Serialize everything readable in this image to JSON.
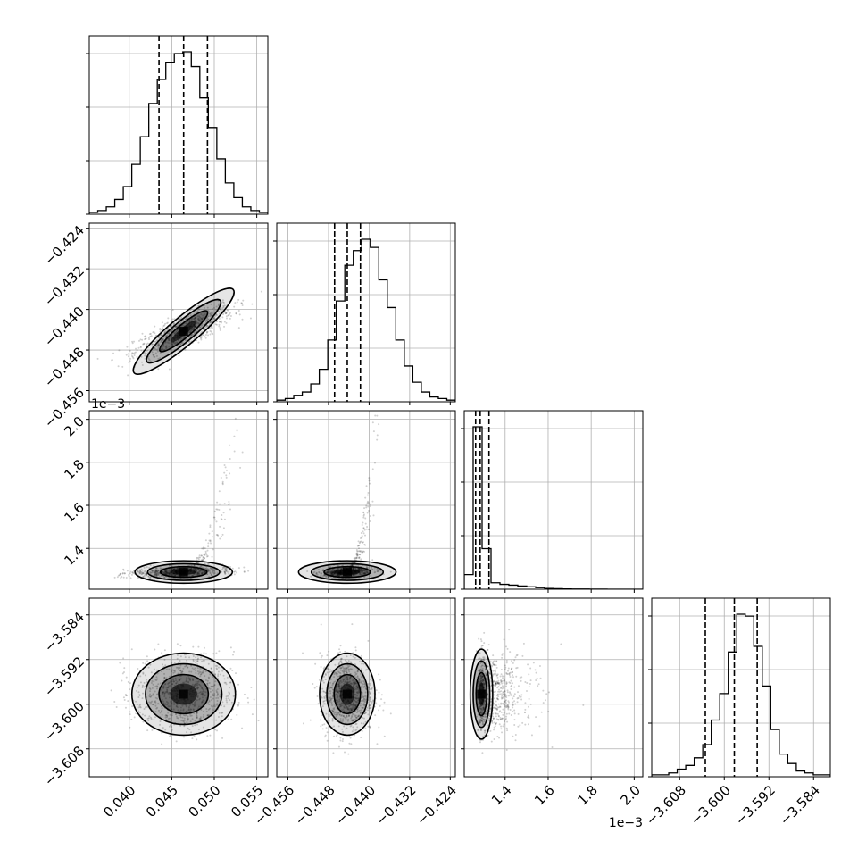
{
  "chart_data": {
    "type": "corner",
    "parameters": 4,
    "colors": {
      "axes": "#000000",
      "grid": "#b0b0b0",
      "points": "#000000",
      "density": "#000000",
      "background": "#ffffff"
    },
    "grid": true,
    "diagonal_style": "step-histogram with dashed quantile lines",
    "quantiles": [
      0.16,
      0.5,
      0.84
    ],
    "x_ticks": [
      [
        "0.040",
        "0.045",
        "0.050",
        "0.055"
      ],
      [
        "−0.456",
        "−0.448",
        "−0.440",
        "−0.432",
        "−0.424"
      ],
      [
        "1.4",
        "1.6",
        "1.8",
        "2.0"
      ],
      [
        "−3.608",
        "−3.600",
        "−3.592",
        "−3.584"
      ]
    ],
    "y_ticks": [
      [],
      [
        "−0.424",
        "−0.432",
        "−0.440",
        "−0.448",
        "−0.456"
      ],
      [
        "2.0",
        "1.8",
        "1.6",
        "1.4"
      ],
      [
        "−3.584",
        "−3.592",
        "−3.600",
        "−3.608"
      ]
    ],
    "x_tick_values": [
      [
        0.04,
        0.045,
        0.05,
        0.055
      ],
      [
        -0.456,
        -0.448,
        -0.44,
        -0.432,
        -0.424
      ],
      [
        1.4,
        1.6,
        1.8,
        2.0
      ],
      [
        -3.608,
        -3.6,
        -3.592,
        -3.584
      ]
    ],
    "y_tick_values": [
      [],
      [
        -0.424,
        -0.432,
        -0.44,
        -0.448,
        -0.456
      ],
      [
        2.0,
        1.8,
        1.6,
        1.4
      ],
      [
        -3.584,
        -3.592,
        -3.6,
        -3.608
      ]
    ],
    "offset_text": "1e−3",
    "ranges": [
      [
        0.0353,
        0.0563
      ],
      [
        -0.4582,
        -0.423
      ],
      [
        1.21,
        2.04
      ],
      [
        -3.613,
        -3.581
      ]
    ],
    "marginals": [
      {
        "param": 0,
        "quantiles": [
          0.0435,
          0.0464,
          0.0492
        ],
        "counts": [
          1,
          2,
          4,
          8,
          15,
          27,
          42,
          60,
          73,
          82,
          87,
          88,
          80,
          63,
          47,
          30,
          17,
          9,
          4,
          2,
          1
        ]
      },
      {
        "param": 1,
        "quantiles": [
          -0.4468,
          -0.4443,
          -0.4417
        ],
        "counts": [
          1,
          2,
          4,
          6,
          11,
          20,
          38,
          62,
          84,
          93,
          100,
          95,
          75,
          58,
          38,
          22,
          12,
          6,
          3,
          2,
          1
        ]
      },
      {
        "param": 2,
        "quantiles": [
          1.263,
          1.284,
          1.325
        ],
        "counts": [
          9,
          100,
          25,
          4,
          3,
          2.5,
          2,
          1.5,
          1,
          0.5,
          0.3,
          0.2,
          0.1,
          0.1,
          0.05,
          0.05,
          0,
          0,
          0,
          0
        ]
      },
      {
        "param": 3,
        "quantiles": [
          -3.6034,
          -3.5982,
          -3.5941
        ],
        "counts": [
          1,
          1,
          2,
          4,
          6,
          10,
          17,
          30,
          44,
          66,
          86,
          85,
          69,
          48,
          25,
          12,
          7,
          3,
          2,
          1,
          1
        ]
      }
    ],
    "pairs": [
      {
        "x": 0,
        "y": 1,
        "mean": [
          0.0464,
          -0.4443
        ],
        "sd": [
          0.0029,
          0.0026
        ],
        "corr": 0.8
      },
      {
        "x": 0,
        "y": 2,
        "mean": [
          0.0464,
          1.29
        ],
        "sd": [
          0.0029,
          0.02
        ],
        "corr": 0.3
      },
      {
        "x": 1,
        "y": 2,
        "mean": [
          -0.4443,
          1.29
        ],
        "sd": [
          0.0026,
          0.02
        ],
        "corr": 0.3
      },
      {
        "x": 0,
        "y": 3,
        "mean": [
          0.0464,
          -3.5982
        ],
        "sd": [
          0.0029,
          0.0035
        ],
        "corr": 0.0
      },
      {
        "x": 1,
        "y": 3,
        "mean": [
          -0.4443,
          -3.5982
        ],
        "sd": [
          0.0026,
          0.0035
        ],
        "corr": 0.0
      },
      {
        "x": 2,
        "y": 3,
        "mean": [
          1.29,
          -3.5982
        ],
        "sd": [
          0.02,
          0.0035
        ],
        "corr": 0.0
      }
    ]
  }
}
